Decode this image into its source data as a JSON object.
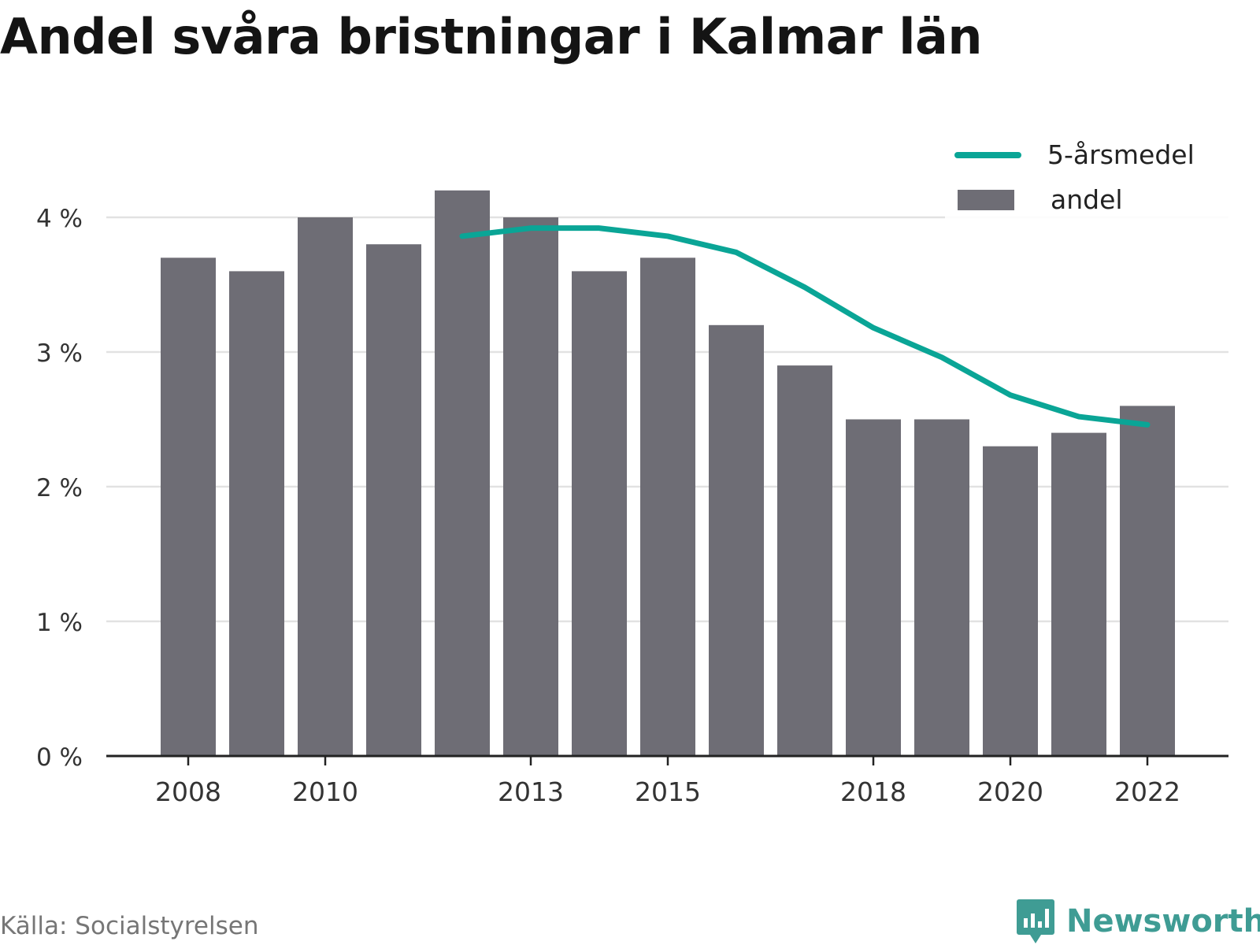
{
  "title": "Andel svåra bristningar i Kalmar län",
  "source": "Källa: Socialstyrelsen",
  "brand": {
    "name": "Newsworthy",
    "icon": "newsworthy-logo-icon"
  },
  "colors": {
    "bar": "#6e6d75",
    "line": "#0aa596",
    "grid": "#e2e2e2",
    "axis": "#222222",
    "brand": "#3f9c94"
  },
  "chart_data": {
    "type": "bar",
    "title": "Andel svåra bristningar i Kalmar län",
    "x": [
      2008,
      2009,
      2010,
      2011,
      2012,
      2013,
      2014,
      2015,
      2016,
      2017,
      2018,
      2019,
      2020,
      2021,
      2022
    ],
    "x_tick_labels": [
      "2008",
      "2010",
      "2013",
      "2015",
      "2018",
      "2020",
      "2022"
    ],
    "y_tick_labels": [
      "0 %",
      "1 %",
      "2 %",
      "3 %",
      "4 %"
    ],
    "ylim": [
      0,
      4.5
    ],
    "grid": true,
    "legend_position": "top-right",
    "series": [
      {
        "name": "andel",
        "kind": "bar",
        "values": [
          3.7,
          3.6,
          4.0,
          3.8,
          4.2,
          4.0,
          3.6,
          3.7,
          3.2,
          2.9,
          2.5,
          2.5,
          2.3,
          2.4,
          2.6
        ]
      },
      {
        "name": "5-årsmedel",
        "kind": "line",
        "values": [
          null,
          null,
          null,
          null,
          3.86,
          3.92,
          3.92,
          3.86,
          3.74,
          3.48,
          3.18,
          2.96,
          2.68,
          2.52,
          2.46
        ]
      }
    ]
  }
}
